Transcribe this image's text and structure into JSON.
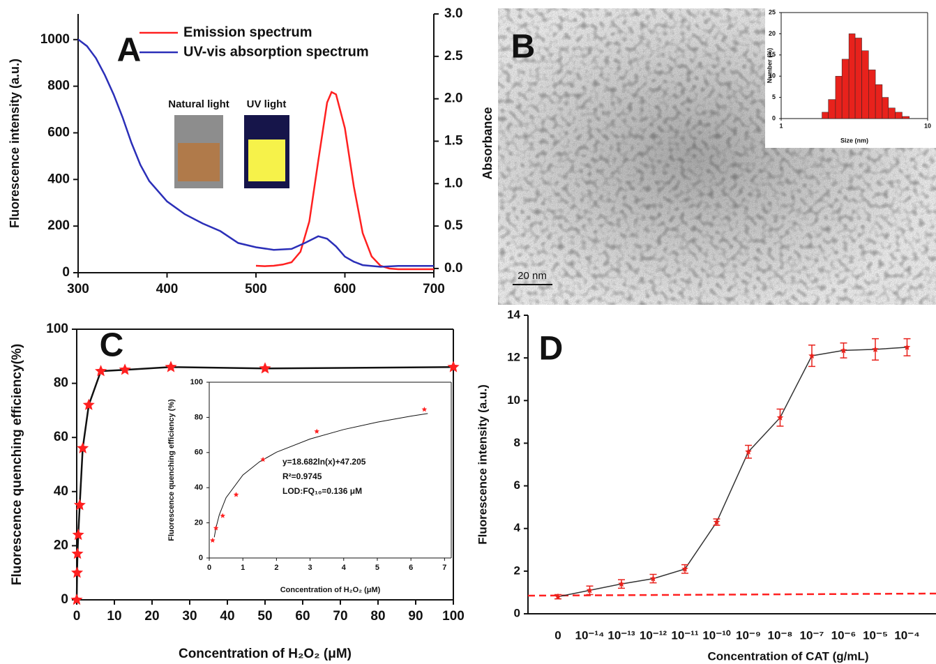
{
  "chart_data": [
    {
      "type": "line",
      "panel_label": "A",
      "annotations": [
        "Natural light",
        "UV light"
      ],
      "y_label": "Fluorescence intensity (a.u.)",
      "y2_label": "Absorbance",
      "xlim": [
        300,
        700
      ],
      "xticks": [
        300,
        400,
        500,
        600,
        700
      ],
      "ylim": [
        0,
        1110
      ],
      "yticks": [
        0,
        200,
        400,
        600,
        800,
        1000
      ],
      "y2lim": [
        -0.05,
        3.0
      ],
      "y2ticks": [
        {
          "value": 0,
          "label": "0.0"
        },
        0.5,
        {
          "value": 1,
          "label": "1.0"
        },
        1.5,
        {
          "value": 2,
          "label": "2.0"
        },
        2.5,
        {
          "value": 3,
          "label": "3.0"
        }
      ],
      "legend": "upper center",
      "series": [
        {
          "name": "Emission spectrum",
          "color": "#ff2020",
          "x": [
            500,
            510,
            520,
            530,
            540,
            550,
            560,
            570,
            580,
            585,
            590,
            600,
            610,
            620,
            630,
            640,
            650,
            660,
            700
          ],
          "values": [
            30,
            28,
            30,
            35,
            45,
            90,
            220,
            480,
            730,
            775,
            765,
            620,
            370,
            170,
            70,
            30,
            18,
            15,
            15
          ]
        },
        {
          "name": "UV-vis absorption spectrum",
          "color": "#2b2fb8",
          "axis": "y2",
          "x": [
            300,
            310,
            320,
            330,
            340,
            350,
            360,
            370,
            380,
            400,
            420,
            440,
            460,
            480,
            500,
            520,
            540,
            555,
            570,
            580,
            590,
            600,
            610,
            620,
            640,
            660,
            700
          ],
          "values": [
            2.7,
            2.62,
            2.48,
            2.28,
            2.05,
            1.78,
            1.48,
            1.22,
            1.03,
            0.79,
            0.64,
            0.53,
            0.44,
            0.3,
            0.25,
            0.22,
            0.23,
            0.3,
            0.38,
            0.35,
            0.26,
            0.14,
            0.08,
            0.04,
            0.02,
            0.03,
            0.03
          ]
        }
      ]
    },
    {
      "type": "histogram",
      "panel_label": "B",
      "scale_bar": "20 nm",
      "x_label": "Size (nm)",
      "y_label": "Number (%)",
      "xlog": true,
      "xlim": [
        1,
        10
      ],
      "xticks": [
        1,
        10
      ],
      "ylim": [
        0,
        25
      ],
      "yticks": [
        0,
        5,
        10,
        15,
        20,
        25
      ],
      "color": "#e8221c",
      "bins": [
        1.9,
        2.1,
        2.35,
        2.6,
        2.9,
        3.2,
        3.55,
        3.95,
        4.4,
        4.9,
        5.4,
        6.0,
        6.7,
        7.5
      ],
      "counts": [
        1.5,
        4.5,
        10,
        14,
        20,
        19,
        16,
        11.5,
        8,
        5,
        2.5,
        1.5,
        0.5
      ]
    },
    {
      "type": "scatter",
      "panel_label": "C",
      "x_label": "Concentration of H₂O₂ (μM)",
      "y_label": "Fluorescence quenching efficiency(%)",
      "xlim": [
        0,
        100
      ],
      "xticks": [
        0,
        10,
        20,
        30,
        40,
        50,
        60,
        70,
        80,
        90,
        100
      ],
      "ylim": [
        0,
        100
      ],
      "yticks": [
        0,
        20,
        40,
        60,
        80,
        100
      ],
      "marker": "star",
      "connect": true,
      "color": "#ff2020",
      "line_color": "#111111",
      "x": [
        0,
        0.1,
        0.2,
        0.4,
        0.8,
        1.6,
        3.2,
        6.4,
        12.8,
        25,
        50,
        100
      ],
      "values": [
        0,
        10,
        17,
        24,
        35,
        56,
        72,
        84.5,
        85,
        86,
        85.5,
        86
      ]
    },
    {
      "type": "scatter",
      "x_label": "Concentration of H₂O₂ (μM)",
      "y_label": "Fluorescence quenching efficiency (%)",
      "annotations": [
        "y=18.682ln(x)+47.205",
        "R²=0.9745",
        "LOD:FQ₁₀=0.136 μM"
      ],
      "xlim": [
        0,
        7.2
      ],
      "xticks": [
        0,
        1,
        2,
        3,
        4,
        5,
        6,
        7
      ],
      "ylim": [
        0,
        100
      ],
      "yticks": [
        0,
        20,
        40,
        60,
        80,
        100
      ],
      "marker": "star",
      "color": "#ff2020",
      "line_color": "#111111",
      "x": [
        0.1,
        0.2,
        0.4,
        0.8,
        1.6,
        3.2,
        6.4
      ],
      "values": [
        10,
        17,
        24,
        36,
        56,
        72,
        84.5
      ],
      "fit": {
        "x": [
          0.15,
          0.2,
          0.3,
          0.5,
          1,
          1.5,
          2,
          3,
          4,
          5,
          6,
          6.5
        ],
        "values": [
          11.8,
          17.1,
          24.7,
          34.3,
          47.2,
          54.8,
          60.2,
          67.7,
          73.1,
          77.3,
          80.7,
          82.2
        ]
      }
    },
    {
      "type": "line",
      "panel_label": "D",
      "x_label": "Concentration of CAT (g/mL)",
      "y_label": "Fluorescence intensity (a.u.)",
      "categories": [
        "0",
        "10⁻¹⁴",
        "10⁻¹³",
        "10⁻¹²",
        "10⁻¹¹",
        "10⁻¹⁰",
        "10⁻⁹",
        "10⁻⁸",
        "10⁻⁷",
        "10⁻⁶",
        "10⁻⁵",
        "10⁻⁴"
      ],
      "ylim": [
        0,
        14
      ],
      "yticks": [
        0,
        2,
        4,
        6,
        8,
        10,
        12,
        14
      ],
      "series": [
        {
          "color": "#e8221c",
          "line_color": "#333333",
          "values": [
            0.8,
            1.1,
            1.4,
            1.65,
            2.1,
            4.3,
            7.6,
            9.2,
            12.1,
            12.35,
            12.4,
            12.5
          ],
          "errors": [
            0.1,
            0.2,
            0.2,
            0.2,
            0.2,
            0.15,
            0.3,
            0.4,
            0.5,
            0.35,
            0.5,
            0.4
          ]
        }
      ],
      "reference_line": {
        "color": "#ff2020",
        "values": [
          0.85,
          0.95
        ]
      }
    }
  ]
}
